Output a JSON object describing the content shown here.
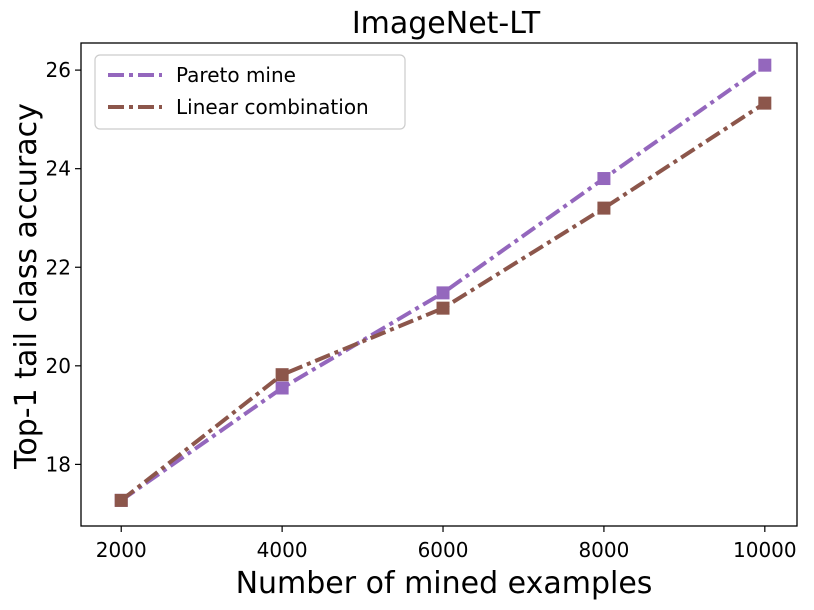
{
  "chart_data": {
    "type": "line",
    "title": "ImageNet-LT",
    "xlabel": "Number of mined examples",
    "ylabel": "Top-1 tail class accuracy",
    "x": [
      2000,
      4000,
      6000,
      8000,
      10000
    ],
    "x_ticks": [
      2000,
      4000,
      6000,
      8000,
      10000
    ],
    "y_ticks": [
      18,
      20,
      22,
      24,
      26
    ],
    "xlim": [
      1500,
      10400
    ],
    "ylim": [
      16.75,
      26.55
    ],
    "grid": false,
    "legend_position": "top-left",
    "series": [
      {
        "name": "Pareto mine",
        "color": "#9467bd",
        "values": [
          17.27,
          19.55,
          21.48,
          23.8,
          26.1
        ]
      },
      {
        "name": "Linear combination",
        "color": "#8c564b",
        "values": [
          17.27,
          19.82,
          21.17,
          23.2,
          25.33
        ]
      }
    ]
  }
}
